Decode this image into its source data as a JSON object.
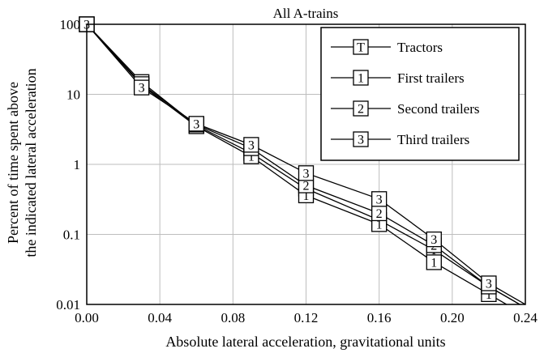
{
  "chart_data": {
    "type": "line",
    "title": "All A-trains",
    "xlabel": "Absolute lateral acceleration, gravitational units",
    "ylabel_lines": [
      "Percent of time spent above",
      "the indicated lateral acceleration"
    ],
    "x_scale": "linear",
    "y_scale": "log",
    "xlim": [
      0.0,
      0.24
    ],
    "ylim": [
      0.01,
      100
    ],
    "grid": true,
    "legend_position": "top-right",
    "x_ticks": [
      "0.00",
      "0.04",
      "0.08",
      "0.12",
      "0.16",
      "0.20",
      "0.24"
    ],
    "y_ticks": [
      "0.01",
      "0.1",
      "1",
      "10",
      "100"
    ],
    "series": [
      {
        "name": "Tractors",
        "marker": "T",
        "x": [
          0.0,
          0.03,
          0.06,
          0.09,
          0.12,
          0.16,
          0.19,
          0.22,
          0.24
        ],
        "y": [
          100,
          15,
          3.6,
          1.45,
          0.45,
          0.16,
          0.06,
          0.018,
          0.009
        ]
      },
      {
        "name": "First trailers",
        "marker": "1",
        "x": [
          0.0,
          0.03,
          0.06,
          0.09,
          0.12,
          0.16,
          0.19,
          0.22,
          0.24
        ],
        "y": [
          100,
          13.5,
          3.5,
          1.3,
          0.36,
          0.14,
          0.04,
          0.014,
          0.007
        ]
      },
      {
        "name": "Second trailers",
        "marker": "2",
        "x": [
          0.0,
          0.03,
          0.06,
          0.09,
          0.12,
          0.16,
          0.19,
          0.22,
          0.24
        ],
        "y": [
          100,
          14,
          3.7,
          1.7,
          0.5,
          0.2,
          0.07,
          0.018,
          0.009
        ]
      },
      {
        "name": "Third trailers",
        "marker": "3",
        "x": [
          0.0,
          0.03,
          0.06,
          0.09,
          0.12,
          0.16,
          0.19,
          0.22,
          0.24
        ],
        "y": [
          100,
          12.5,
          3.8,
          1.9,
          0.75,
          0.32,
          0.085,
          0.02,
          0.01
        ]
      }
    ]
  }
}
